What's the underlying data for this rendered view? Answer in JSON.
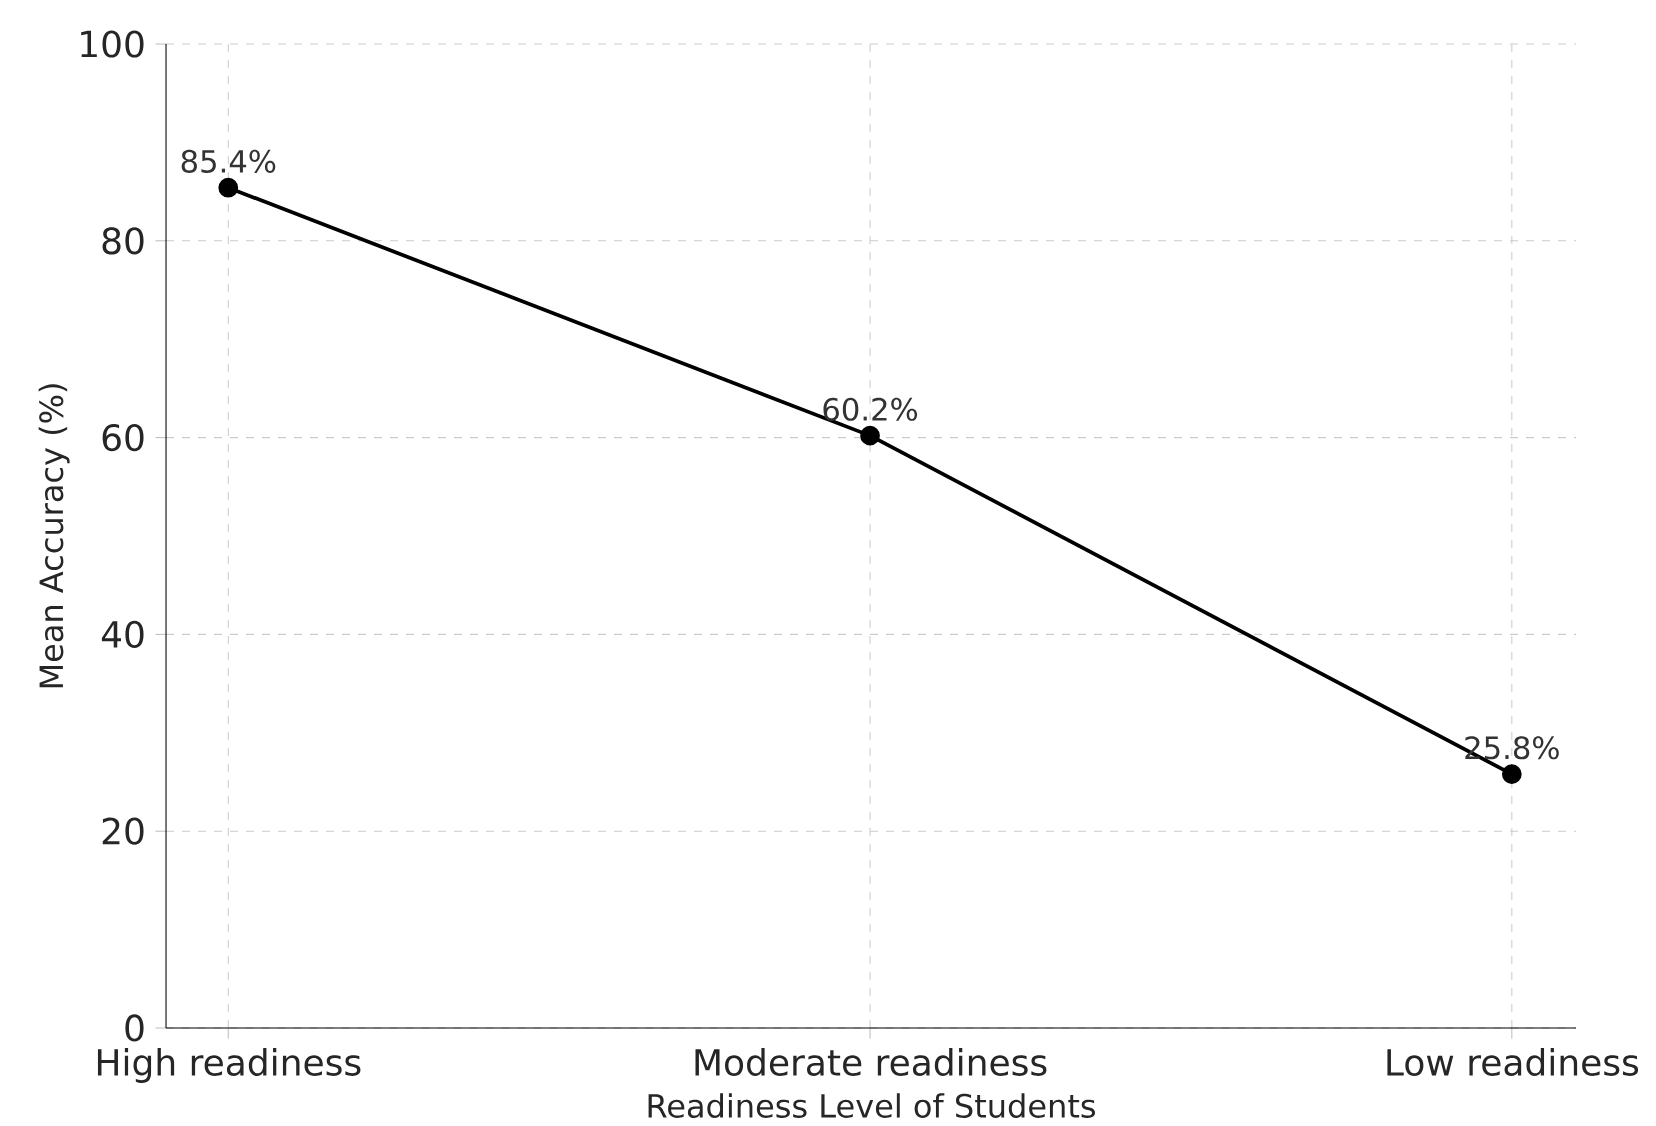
{
  "chart_data": {
    "type": "line",
    "xlabel": "Readiness Level of Students",
    "ylabel": "Mean Accuracy (%)",
    "categories": [
      "High readiness",
      "Moderate readiness",
      "Low readiness"
    ],
    "series": [
      {
        "color": "#000000",
        "values": [
          85.4,
          60.2,
          25.8
        ],
        "value_labels": [
          "85.4%",
          "60.2%",
          "25.8%"
        ]
      }
    ],
    "ylim": [
      0,
      100
    ],
    "yticks": [
      0,
      20,
      40,
      60,
      80,
      100
    ],
    "grid": true,
    "marker": "circle",
    "line_style": "solid"
  }
}
